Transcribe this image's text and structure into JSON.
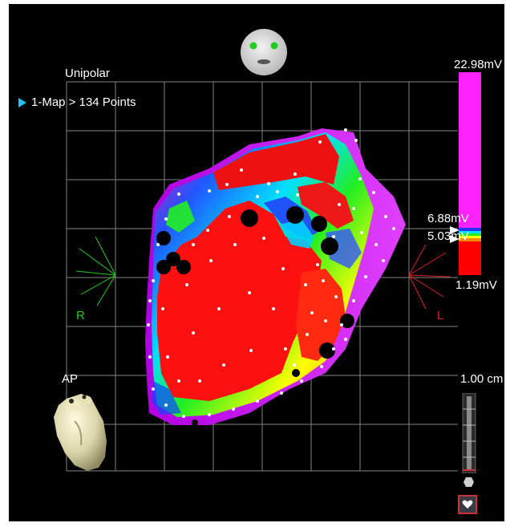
{
  "map": {
    "mode": "Unipolar",
    "map_label": "1-Map > 134 Points"
  },
  "colorbar": {
    "max_label": "22.98mV",
    "upper_threshold_label": "6.88mV",
    "lower_threshold_label": "5.03mV",
    "min_label": "1.19mV",
    "colors": {
      "above": "#ff22ff",
      "below": "#ff0000"
    }
  },
  "orientation": {
    "right_label": "R",
    "left_label": "L",
    "view_label": "AP",
    "right_color": "#22cc22",
    "left_color": "#dd2222"
  },
  "scale": {
    "label": "1.00 cm"
  },
  "icons": [
    "head-orientation-icon",
    "heart-thumbnail-icon",
    "heart-button-icon",
    "hexagon-icon"
  ]
}
